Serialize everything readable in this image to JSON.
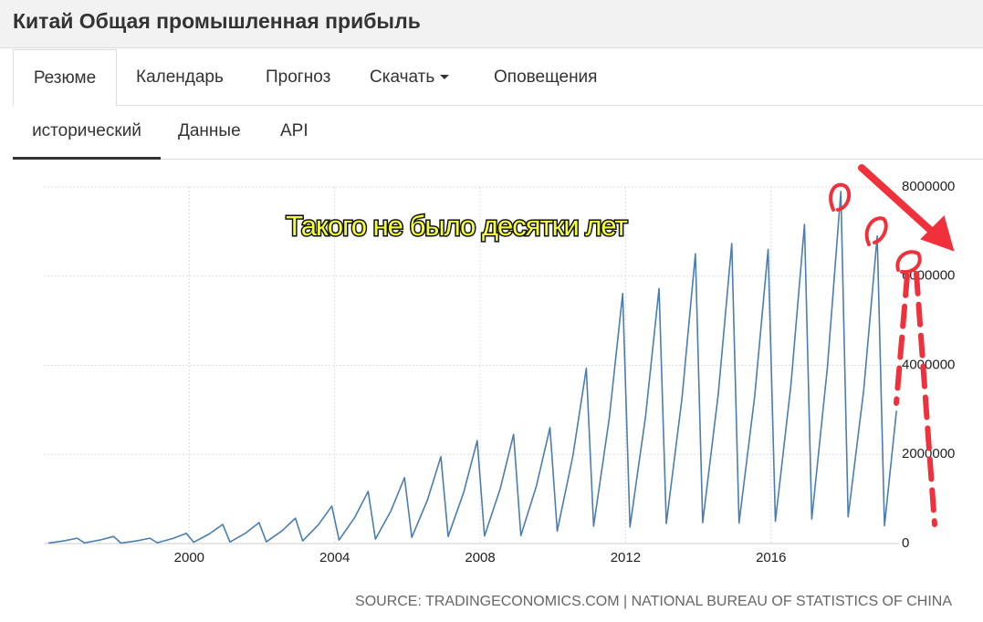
{
  "header": {
    "title": "Китай Общая промышленная прибыль"
  },
  "tabs": [
    "Резюме",
    "Календарь",
    "Прогноз",
    "Скачать",
    "Оповещения"
  ],
  "subtabs": [
    "исторический",
    "Данные",
    "API"
  ],
  "chart_data": {
    "type": "line",
    "x": [
      1996.12,
      1996.55,
      1996.92,
      1997.12,
      1997.55,
      1997.92,
      1998.12,
      1998.55,
      1998.92,
      1999.12,
      1999.55,
      1999.92,
      2000.12,
      2000.55,
      2000.92,
      2001.12,
      2001.55,
      2001.92,
      2002.12,
      2002.55,
      2002.92,
      2003.12,
      2003.55,
      2003.92,
      2004.12,
      2004.55,
      2004.92,
      2005.12,
      2005.55,
      2005.92,
      2006.12,
      2006.55,
      2006.92,
      2007.12,
      2007.55,
      2007.92,
      2008.12,
      2008.55,
      2008.92,
      2009.12,
      2009.55,
      2009.92,
      2010.12,
      2010.55,
      2010.92,
      2011.12,
      2011.55,
      2011.92,
      2012.12,
      2012.55,
      2012.92,
      2013.12,
      2013.55,
      2013.92,
      2014.12,
      2014.55,
      2014.92,
      2015.12,
      2015.55,
      2015.92,
      2016.12,
      2016.55,
      2016.92,
      2017.12,
      2017.55,
      2017.92,
      2018.12,
      2018.55,
      2018.92,
      2019.12,
      2019.45
    ],
    "values": [
      10000,
      60000,
      120000,
      15000,
      80000,
      160000,
      10000,
      60000,
      120000,
      18000,
      115000,
      230000,
      30000,
      215000,
      430000,
      35000,
      235000,
      470000,
      40000,
      285000,
      570000,
      60000,
      420000,
      840000,
      80000,
      585000,
      1170000,
      100000,
      740000,
      1480000,
      140000,
      975000,
      1950000,
      160000,
      1155000,
      2310000,
      170000,
      1225000,
      2450000,
      180000,
      1300000,
      2600000,
      280000,
      1965000,
      3930000,
      390000,
      2805000,
      5610000,
      370000,
      2860000,
      5720000,
      450000,
      3250000,
      6500000,
      470000,
      3365000,
      6730000,
      460000,
      3300000,
      6600000,
      500000,
      3580000,
      7160000,
      550000,
      3950000,
      7900000,
      600000,
      3450000,
      6900000,
      400000,
      2980000
    ],
    "color": "#4a7eb0",
    "xlim": [
      1996,
      2019.52
    ],
    "xticks": [
      2000,
      2004,
      2008,
      2012,
      2016
    ],
    "ylim": [
      0,
      8000000
    ],
    "yticks": [
      0,
      2000000,
      4000000,
      6000000,
      8000000
    ],
    "grid": true,
    "annotation": "Такого не было десятки лет",
    "source": "SOURCE: TRADINGECONOMICS.COM | NATIONAL BUREAU OF STATISTICS OF CHINA"
  }
}
